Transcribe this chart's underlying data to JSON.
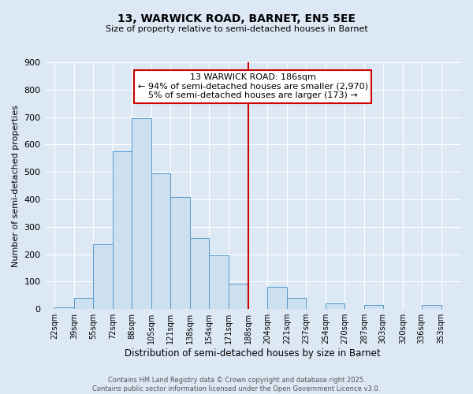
{
  "title": "13, WARWICK ROAD, BARNET, EN5 5EE",
  "subtitle": "Size of property relative to semi-detached houses in Barnet",
  "xlabel": "Distribution of semi-detached houses by size in Barnet",
  "ylabel": "Number of semi-detached properties",
  "bin_labels": [
    "22sqm",
    "39sqm",
    "55sqm",
    "72sqm",
    "88sqm",
    "105sqm",
    "121sqm",
    "138sqm",
    "154sqm",
    "171sqm",
    "188sqm",
    "204sqm",
    "221sqm",
    "237sqm",
    "254sqm",
    "270sqm",
    "287sqm",
    "303sqm",
    "320sqm",
    "336sqm",
    "353sqm"
  ],
  "bin_edges": [
    22,
    39,
    55,
    72,
    88,
    105,
    121,
    138,
    154,
    171,
    188,
    204,
    221,
    237,
    254,
    270,
    287,
    303,
    320,
    336,
    353
  ],
  "bar_heights": [
    5,
    42,
    237,
    575,
    695,
    495,
    410,
    260,
    195,
    93,
    0,
    82,
    40,
    0,
    20,
    0,
    15,
    0,
    0,
    15,
    0
  ],
  "bar_color": "#cce0f0",
  "bar_edge_color": "#5599cc",
  "vline_x": 188,
  "vline_color": "#cc0000",
  "annotation_title": "13 WARWICK ROAD: 186sqm",
  "annotation_line1": "← 94% of semi-detached houses are smaller (2,970)",
  "annotation_line2": "5% of semi-detached houses are larger (173) →",
  "annotation_box_color": "#ffffff",
  "annotation_box_edge": "#cc0000",
  "ylim": [
    0,
    900
  ],
  "yticks": [
    0,
    100,
    200,
    300,
    400,
    500,
    600,
    700,
    800,
    900
  ],
  "background_color": "#dde8f5",
  "grid_color": "#ffffff",
  "footer_line1": "Contains HM Land Registry data © Crown copyright and database right 2025.",
  "footer_line2": "Contains public sector information licensed under the Open Government Licence v3.0."
}
